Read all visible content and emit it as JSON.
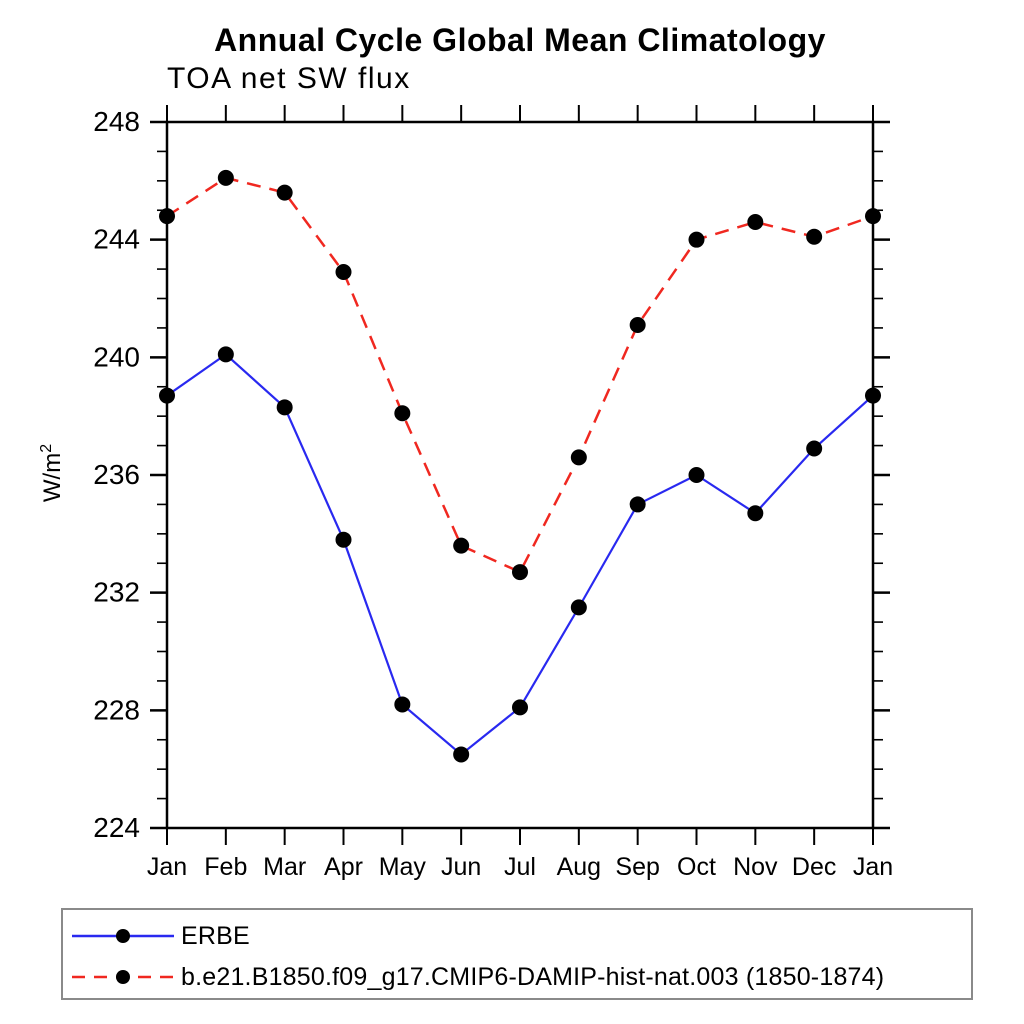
{
  "chart": {
    "title": "Annual Cycle Global Mean Climatology",
    "subtitle": "TOA net SW flux",
    "ylabel_base": "W/m",
    "ylabel_exp": "2"
  },
  "legend": {
    "entries": [
      {
        "label": "ERBE",
        "color": "#2929f0",
        "style": "solid"
      },
      {
        "label": "b.e21.B1850.f09_g17.CMIP6-DAMIP-hist-nat.003 (1850-1874)",
        "color": "#f02820",
        "style": "dashed"
      }
    ]
  },
  "chart_data": {
    "type": "line",
    "title": "Annual Cycle Global Mean Climatology",
    "subtitle": "TOA net SW flux",
    "xlabel": "",
    "ylabel": "W/m²",
    "categories": [
      "Jan",
      "Feb",
      "Mar",
      "Apr",
      "May",
      "Jun",
      "Jul",
      "Aug",
      "Sep",
      "Oct",
      "Nov",
      "Dec",
      "Jan"
    ],
    "ylim": [
      224,
      248
    ],
    "y_major_step": 4,
    "y_minor_step": 1,
    "grid": false,
    "legend_position": "bottom",
    "marker": "filled-black-circle",
    "series": [
      {
        "name": "ERBE",
        "color": "#2929f0",
        "line_style": "solid",
        "values": [
          238.7,
          240.1,
          238.3,
          233.8,
          228.2,
          226.5,
          228.1,
          231.5,
          235.0,
          236.0,
          234.7,
          236.9,
          238.7
        ]
      },
      {
        "name": "b.e21.B1850.f09_g17.CMIP6-DAMIP-hist-nat.003 (1850-1874)",
        "color": "#f02820",
        "line_style": "dashed",
        "values": [
          244.8,
          246.1,
          245.6,
          242.9,
          238.1,
          233.6,
          232.7,
          236.6,
          241.1,
          244.0,
          244.6,
          244.1,
          244.8
        ]
      }
    ]
  }
}
